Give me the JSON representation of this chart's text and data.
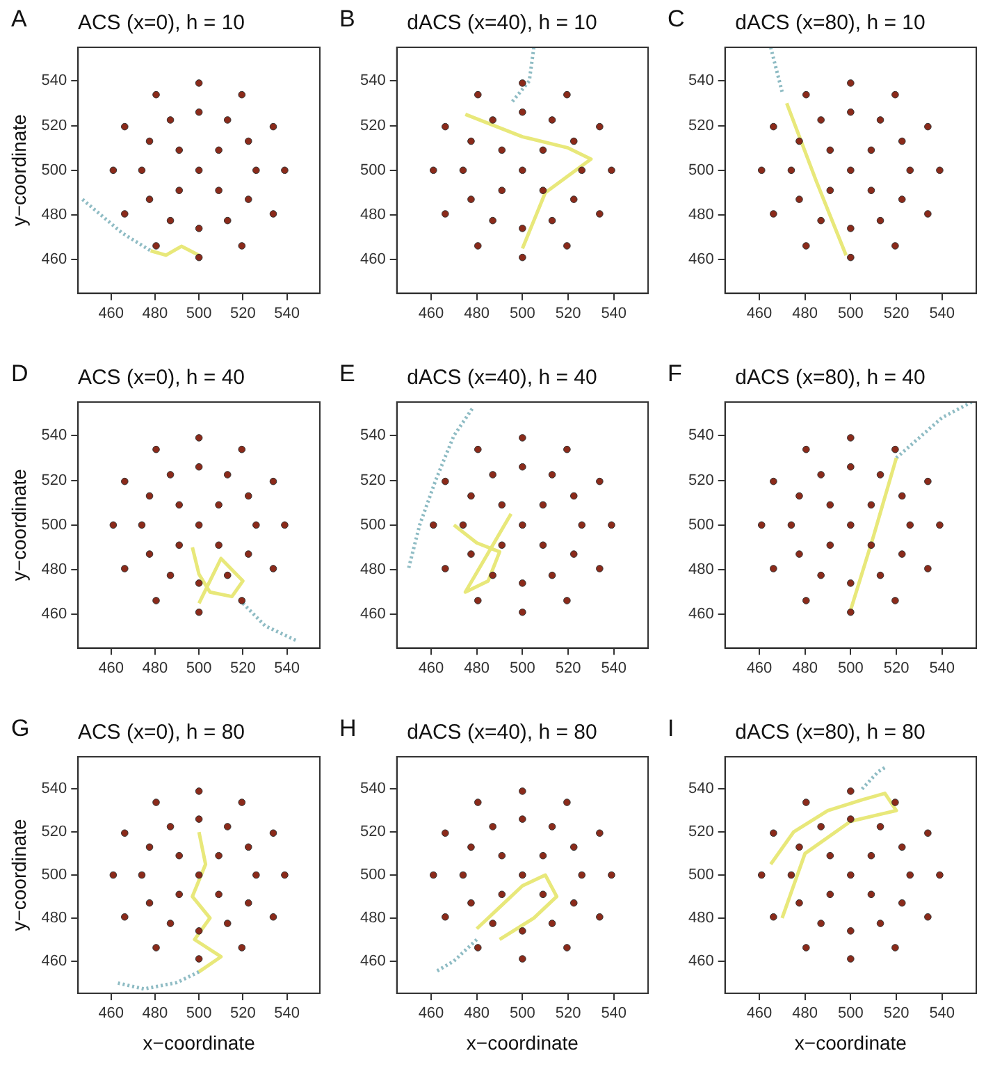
{
  "chart_data": [
    {
      "type": "scatter",
      "title": "ACS (x=0), h = 10",
      "annotations": [
        "A"
      ],
      "ylabel": "y−coordinate",
      "xlim": [
        445,
        555
      ],
      "ylim": [
        445,
        555
      ],
      "xticks": [
        460,
        480,
        500,
        520,
        540
      ],
      "yticks": [
        460,
        480,
        500,
        520,
        540
      ],
      "grid": false,
      "legend": false,
      "series": [
        {
          "type": "scatter",
          "marker": "circle",
          "color": "#8b2a1a",
          "x": [
            539,
            533.8,
            519.5,
            500,
            480.5,
            466.2,
            461,
            466.2,
            480.5,
            500,
            519.5,
            533.8,
            526,
            522.5,
            513,
            500,
            487,
            477.5,
            474,
            477.5,
            487,
            500,
            513,
            522.5,
            509,
            491,
            491,
            509,
            500
          ],
          "values": [
            500,
            519.5,
            533.8,
            539,
            533.8,
            519.5,
            500,
            480.5,
            466.2,
            461,
            466.2,
            480.5,
            500,
            513,
            522.5,
            526,
            522.5,
            513,
            500,
            487,
            477.5,
            474,
            477.5,
            487,
            509,
            509,
            491,
            491,
            500
          ]
        },
        {
          "type": "line",
          "line_style": "solid",
          "color": "#e8e87a",
          "x": [
            478,
            485,
            492,
            500
          ],
          "values": [
            464,
            462,
            466,
            462
          ]
        },
        {
          "type": "line",
          "line_style": "dotted",
          "color": "#8fbcc4",
          "x": [
            447,
            465,
            478
          ],
          "values": [
            487,
            472,
            464
          ]
        }
      ]
    },
    {
      "type": "scatter",
      "title": "dACS (x=40), h = 10",
      "annotations": [
        "B"
      ],
      "xlim": [
        445,
        555
      ],
      "ylim": [
        445,
        555
      ],
      "xticks": [
        460,
        480,
        500,
        520,
        540
      ],
      "yticks": [
        460,
        480,
        500,
        520,
        540
      ],
      "grid": false,
      "legend": false,
      "series": [
        {
          "type": "scatter",
          "marker": "circle",
          "color": "#8b2a1a",
          "x": [
            539,
            533.8,
            519.5,
            500,
            480.5,
            466.2,
            461,
            466.2,
            480.5,
            500,
            519.5,
            533.8,
            526,
            522.5,
            513,
            500,
            487,
            477.5,
            474,
            477.5,
            487,
            500,
            513,
            522.5,
            509,
            491,
            491,
            509,
            500
          ],
          "values": [
            500,
            519.5,
            533.8,
            539,
            533.8,
            519.5,
            500,
            480.5,
            466.2,
            461,
            466.2,
            480.5,
            500,
            513,
            522.5,
            526,
            522.5,
            513,
            500,
            487,
            477.5,
            474,
            477.5,
            487,
            509,
            509,
            491,
            491,
            500
          ]
        },
        {
          "type": "line",
          "line_style": "solid",
          "color": "#e8e87a",
          "x": [
            475,
            500,
            520,
            530,
            510,
            500
          ],
          "values": [
            525,
            515,
            510,
            505,
            490,
            465
          ]
        },
        {
          "type": "line",
          "line_style": "dotted",
          "color": "#8fbcc4",
          "x": [
            505,
            503,
            495
          ],
          "values": [
            555,
            540,
            530
          ]
        }
      ]
    },
    {
      "type": "scatter",
      "title": "dACS (x=80), h = 10",
      "annotations": [
        "C"
      ],
      "xlim": [
        445,
        555
      ],
      "ylim": [
        445,
        555
      ],
      "xticks": [
        460,
        480,
        500,
        520,
        540
      ],
      "yticks": [
        460,
        480,
        500,
        520,
        540
      ],
      "grid": false,
      "legend": false,
      "series": [
        {
          "type": "scatter",
          "marker": "circle",
          "color": "#8b2a1a",
          "x": [
            539,
            533.8,
            519.5,
            500,
            480.5,
            466.2,
            461,
            466.2,
            480.5,
            500,
            519.5,
            533.8,
            526,
            522.5,
            513,
            500,
            487,
            477.5,
            474,
            477.5,
            487,
            500,
            513,
            522.5,
            509,
            491,
            491,
            509,
            500
          ],
          "values": [
            500,
            519.5,
            533.8,
            539,
            533.8,
            519.5,
            500,
            480.5,
            466.2,
            461,
            466.2,
            480.5,
            500,
            513,
            522.5,
            526,
            522.5,
            513,
            500,
            487,
            477.5,
            474,
            477.5,
            487,
            509,
            509,
            491,
            491,
            500
          ]
        },
        {
          "type": "line",
          "line_style": "solid",
          "color": "#e8e87a",
          "x": [
            472,
            485,
            498
          ],
          "values": [
            530,
            495,
            462
          ]
        },
        {
          "type": "line",
          "line_style": "dotted",
          "color": "#8fbcc4",
          "x": [
            465,
            470
          ],
          "values": [
            555,
            535
          ]
        }
      ]
    },
    {
      "type": "scatter",
      "title": "ACS (x=0), h = 40",
      "annotations": [
        "D"
      ],
      "ylabel": "y−coordinate",
      "xlim": [
        445,
        555
      ],
      "ylim": [
        445,
        555
      ],
      "xticks": [
        460,
        480,
        500,
        520,
        540
      ],
      "yticks": [
        460,
        480,
        500,
        520,
        540
      ],
      "grid": false,
      "legend": false,
      "series": [
        {
          "type": "scatter",
          "marker": "circle",
          "color": "#8b2a1a",
          "x": [
            539,
            533.8,
            519.5,
            500,
            480.5,
            466.2,
            461,
            466.2,
            480.5,
            500,
            519.5,
            533.8,
            526,
            522.5,
            513,
            500,
            487,
            477.5,
            474,
            477.5,
            487,
            500,
            513,
            522.5,
            509,
            491,
            491,
            509,
            500
          ],
          "values": [
            500,
            519.5,
            533.8,
            539,
            533.8,
            519.5,
            500,
            480.5,
            466.2,
            461,
            466.2,
            480.5,
            500,
            513,
            522.5,
            526,
            522.5,
            513,
            500,
            487,
            477.5,
            474,
            477.5,
            487,
            509,
            509,
            491,
            491,
            500
          ]
        },
        {
          "type": "line",
          "line_style": "solid",
          "color": "#e8e87a",
          "x": [
            497,
            500,
            505,
            515,
            520,
            510,
            500
          ],
          "values": [
            490,
            478,
            470,
            468,
            475,
            485,
            465
          ]
        },
        {
          "type": "line",
          "line_style": "dotted",
          "color": "#8fbcc4",
          "x": [
            520,
            530,
            545
          ],
          "values": [
            465,
            455,
            448
          ]
        }
      ]
    },
    {
      "type": "scatter",
      "title": "dACS (x=40), h = 40",
      "annotations": [
        "E"
      ],
      "xlim": [
        445,
        555
      ],
      "ylim": [
        445,
        555
      ],
      "xticks": [
        460,
        480,
        500,
        520,
        540
      ],
      "yticks": [
        460,
        480,
        500,
        520,
        540
      ],
      "grid": false,
      "legend": false,
      "series": [
        {
          "type": "scatter",
          "marker": "circle",
          "color": "#8b2a1a",
          "x": [
            539,
            533.8,
            519.5,
            500,
            480.5,
            466.2,
            461,
            466.2,
            480.5,
            500,
            519.5,
            533.8,
            526,
            522.5,
            513,
            500,
            487,
            477.5,
            474,
            477.5,
            487,
            500,
            513,
            522.5,
            509,
            491,
            491,
            509,
            500
          ],
          "values": [
            500,
            519.5,
            533.8,
            539,
            533.8,
            519.5,
            500,
            480.5,
            466.2,
            461,
            466.2,
            480.5,
            500,
            513,
            522.5,
            526,
            522.5,
            513,
            500,
            487,
            477.5,
            474,
            477.5,
            487,
            509,
            509,
            491,
            491,
            500
          ]
        },
        {
          "type": "line",
          "line_style": "solid",
          "color": "#e8e87a",
          "x": [
            470,
            480,
            490,
            485,
            475,
            495
          ],
          "values": [
            500,
            492,
            488,
            475,
            470,
            505
          ]
        },
        {
          "type": "line",
          "line_style": "dotted",
          "color": "#8fbcc4",
          "x": [
            478,
            470,
            462,
            455,
            450
          ],
          "values": [
            552,
            540,
            520,
            500,
            480
          ]
        }
      ]
    },
    {
      "type": "scatter",
      "title": "dACS (x=80), h = 40",
      "annotations": [
        "F"
      ],
      "xlim": [
        445,
        555
      ],
      "ylim": [
        445,
        555
      ],
      "xticks": [
        460,
        480,
        500,
        520,
        540
      ],
      "yticks": [
        460,
        480,
        500,
        520,
        540
      ],
      "grid": false,
      "legend": false,
      "series": [
        {
          "type": "scatter",
          "marker": "circle",
          "color": "#8b2a1a",
          "x": [
            539,
            533.8,
            519.5,
            500,
            480.5,
            466.2,
            461,
            466.2,
            480.5,
            500,
            519.5,
            533.8,
            526,
            522.5,
            513,
            500,
            487,
            477.5,
            474,
            477.5,
            487,
            500,
            513,
            522.5,
            509,
            491,
            491,
            509,
            500
          ],
          "values": [
            500,
            519.5,
            533.8,
            539,
            533.8,
            519.5,
            500,
            480.5,
            466.2,
            461,
            466.2,
            480.5,
            500,
            513,
            522.5,
            526,
            522.5,
            513,
            500,
            487,
            477.5,
            474,
            477.5,
            487,
            509,
            509,
            491,
            491,
            500
          ]
        },
        {
          "type": "line",
          "line_style": "solid",
          "color": "#e8e87a",
          "x": [
            500,
            510,
            520
          ],
          "values": [
            462,
            495,
            530
          ]
        },
        {
          "type": "line",
          "line_style": "dotted",
          "color": "#8fbcc4",
          "x": [
            520,
            540,
            553
          ],
          "values": [
            530,
            548,
            555
          ]
        }
      ]
    },
    {
      "type": "scatter",
      "title": "ACS (x=0), h = 80",
      "annotations": [
        "G"
      ],
      "xlabel": "x−coordinate",
      "ylabel": "y−coordinate",
      "xlim": [
        445,
        555
      ],
      "ylim": [
        445,
        555
      ],
      "xticks": [
        460,
        480,
        500,
        520,
        540
      ],
      "yticks": [
        460,
        480,
        500,
        520,
        540
      ],
      "grid": false,
      "legend": false,
      "series": [
        {
          "type": "scatter",
          "marker": "circle",
          "color": "#8b2a1a",
          "x": [
            539,
            533.8,
            519.5,
            500,
            480.5,
            466.2,
            461,
            466.2,
            480.5,
            500,
            519.5,
            533.8,
            526,
            522.5,
            513,
            500,
            487,
            477.5,
            474,
            477.5,
            487,
            500,
            513,
            522.5,
            509,
            491,
            491,
            509,
            500
          ],
          "values": [
            500,
            519.5,
            533.8,
            539,
            533.8,
            519.5,
            500,
            480.5,
            466.2,
            461,
            466.2,
            480.5,
            500,
            513,
            522.5,
            526,
            522.5,
            513,
            500,
            487,
            477.5,
            474,
            477.5,
            487,
            509,
            509,
            491,
            491,
            500
          ]
        },
        {
          "type": "line",
          "line_style": "solid",
          "color": "#e8e87a",
          "x": [
            500,
            503,
            497,
            505,
            498,
            510,
            500
          ],
          "values": [
            520,
            505,
            490,
            480,
            470,
            462,
            455
          ]
        },
        {
          "type": "line",
          "line_style": "dotted",
          "color": "#8fbcc4",
          "x": [
            500,
            490,
            475,
            462
          ],
          "values": [
            455,
            450,
            447,
            450
          ]
        }
      ]
    },
    {
      "type": "scatter",
      "title": "dACS (x=40), h = 80",
      "annotations": [
        "H"
      ],
      "xlabel": "x−coordinate",
      "xlim": [
        445,
        555
      ],
      "ylim": [
        445,
        555
      ],
      "xticks": [
        460,
        480,
        500,
        520,
        540
      ],
      "yticks": [
        460,
        480,
        500,
        520,
        540
      ],
      "grid": false,
      "legend": false,
      "series": [
        {
          "type": "scatter",
          "marker": "circle",
          "color": "#8b2a1a",
          "x": [
            539,
            533.8,
            519.5,
            500,
            480.5,
            466.2,
            461,
            466.2,
            480.5,
            500,
            519.5,
            533.8,
            526,
            522.5,
            513,
            500,
            487,
            477.5,
            474,
            477.5,
            487,
            500,
            513,
            522.5,
            509,
            491,
            491,
            509,
            500
          ],
          "values": [
            500,
            519.5,
            533.8,
            539,
            533.8,
            519.5,
            500,
            480.5,
            466.2,
            461,
            466.2,
            480.5,
            500,
            513,
            522.5,
            526,
            522.5,
            513,
            500,
            487,
            477.5,
            474,
            477.5,
            487,
            509,
            509,
            491,
            491,
            500
          ]
        },
        {
          "type": "line",
          "line_style": "solid",
          "color": "#e8e87a",
          "x": [
            480,
            490,
            500,
            510,
            515,
            505,
            490
          ],
          "values": [
            475,
            485,
            495,
            500,
            490,
            480,
            470
          ]
        },
        {
          "type": "line",
          "line_style": "dotted",
          "color": "#8fbcc4",
          "x": [
            480,
            470,
            462
          ],
          "values": [
            470,
            460,
            455
          ]
        }
      ]
    },
    {
      "type": "scatter",
      "title": "dACS (x=80), h = 80",
      "annotations": [
        "I"
      ],
      "xlabel": "x−coordinate",
      "xlim": [
        445,
        555
      ],
      "ylim": [
        445,
        555
      ],
      "xticks": [
        460,
        480,
        500,
        520,
        540
      ],
      "yticks": [
        460,
        480,
        500,
        520,
        540
      ],
      "grid": false,
      "legend": false,
      "series": [
        {
          "type": "scatter",
          "marker": "circle",
          "color": "#8b2a1a",
          "x": [
            539,
            533.8,
            519.5,
            500,
            480.5,
            466.2,
            461,
            466.2,
            480.5,
            500,
            519.5,
            533.8,
            526,
            522.5,
            513,
            500,
            487,
            477.5,
            474,
            477.5,
            487,
            500,
            513,
            522.5,
            509,
            491,
            491,
            509,
            500
          ],
          "values": [
            500,
            519.5,
            533.8,
            539,
            533.8,
            519.5,
            500,
            480.5,
            466.2,
            461,
            466.2,
            480.5,
            500,
            513,
            522.5,
            526,
            522.5,
            513,
            500,
            487,
            477.5,
            474,
            477.5,
            487,
            509,
            509,
            491,
            491,
            500
          ]
        },
        {
          "type": "line",
          "line_style": "solid",
          "color": "#e8e87a",
          "x": [
            465,
            475,
            490,
            505,
            515,
            520,
            500,
            480,
            470
          ],
          "values": [
            505,
            520,
            530,
            535,
            538,
            530,
            525,
            510,
            480
          ]
        },
        {
          "type": "line",
          "line_style": "dotted",
          "color": "#8fbcc4",
          "x": [
            505,
            512,
            515
          ],
          "values": [
            540,
            548,
            550
          ]
        }
      ]
    }
  ]
}
